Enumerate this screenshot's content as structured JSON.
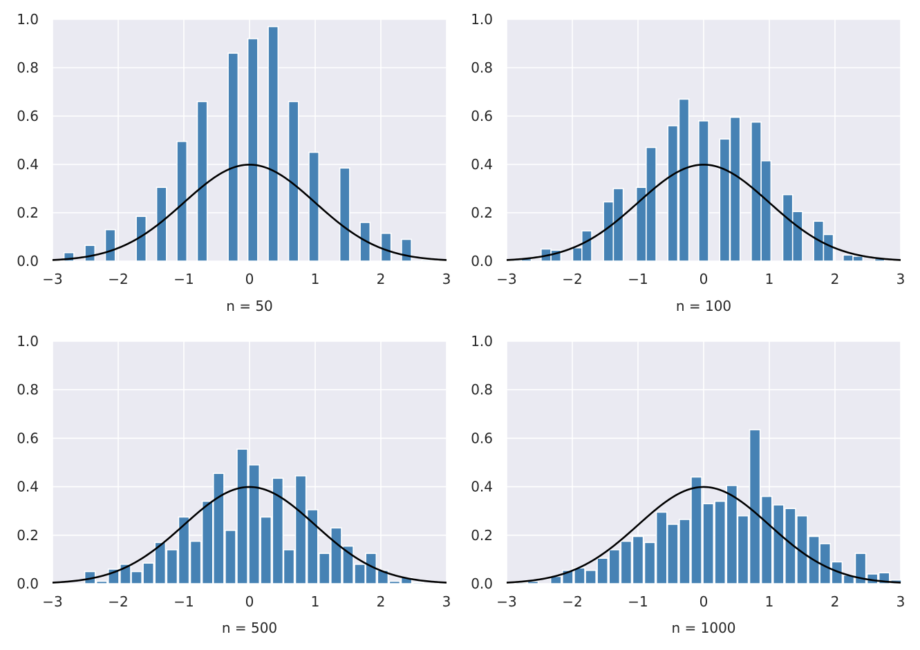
{
  "figure": {
    "background": "#ffffff"
  },
  "style": {
    "panel_bg": "#eaeaf2",
    "grid_color": "#ffffff",
    "bar_color": "#4682b4",
    "bar_edge": "#ffffff",
    "curve_color": "#000000"
  },
  "chart_data": [
    {
      "type": "bar",
      "xlabel": "n = 50",
      "xlim": [
        -3,
        3
      ],
      "ylim": [
        0,
        1
      ],
      "xticks": [
        -3,
        -2,
        -1,
        0,
        1,
        2,
        3
      ],
      "xtick_labels": [
        "−3",
        "−2",
        "−1",
        "0",
        "1",
        "2",
        "3"
      ],
      "yticks": [
        0,
        0.2,
        0.4,
        0.6,
        0.8,
        1.0
      ],
      "ytick_labels": [
        "0.0",
        "0.2",
        "0.4",
        "0.6",
        "0.8",
        "1.0"
      ],
      "grid": true,
      "bin_width": 0.15,
      "bars": [
        {
          "x": -2.75,
          "y": 0.035
        },
        {
          "x": -2.43,
          "y": 0.065
        },
        {
          "x": -2.12,
          "y": 0.13
        },
        {
          "x": -1.65,
          "y": 0.185
        },
        {
          "x": -1.34,
          "y": 0.305
        },
        {
          "x": -1.03,
          "y": 0.495
        },
        {
          "x": -0.72,
          "y": 0.66
        },
        {
          "x": -0.25,
          "y": 0.86
        },
        {
          "x": 0.05,
          "y": 0.92
        },
        {
          "x": 0.36,
          "y": 0.97
        },
        {
          "x": 0.67,
          "y": 0.66
        },
        {
          "x": 0.98,
          "y": 0.45
        },
        {
          "x": 1.45,
          "y": 0.385
        },
        {
          "x": 1.76,
          "y": 0.16
        },
        {
          "x": 2.08,
          "y": 0.115
        },
        {
          "x": 2.39,
          "y": 0.09
        },
        {
          "x": 2.7,
          "y": 0.005
        }
      ],
      "curve": "standard normal pdf"
    },
    {
      "type": "bar",
      "xlabel": "n = 100",
      "xlim": [
        -3,
        3
      ],
      "ylim": [
        0,
        1
      ],
      "xticks": [
        -3,
        -2,
        -1,
        0,
        1,
        2,
        3
      ],
      "xtick_labels": [
        "−3",
        "−2",
        "−1",
        "0",
        "1",
        "2",
        "3"
      ],
      "yticks": [
        0,
        0.2,
        0.4,
        0.6,
        0.8,
        1.0
      ],
      "ytick_labels": [
        "0.0",
        "0.2",
        "0.4",
        "0.6",
        "0.8",
        "1.0"
      ],
      "grid": true,
      "bin_width": 0.15,
      "bars": [
        {
          "x": -2.85,
          "y": 0.005
        },
        {
          "x": -2.7,
          "y": 0.01
        },
        {
          "x": -2.4,
          "y": 0.05
        },
        {
          "x": -2.25,
          "y": 0.045
        },
        {
          "x": -1.92,
          "y": 0.055
        },
        {
          "x": -1.78,
          "y": 0.125
        },
        {
          "x": -1.45,
          "y": 0.245
        },
        {
          "x": -1.3,
          "y": 0.3
        },
        {
          "x": -0.95,
          "y": 0.305
        },
        {
          "x": -0.8,
          "y": 0.47
        },
        {
          "x": -0.47,
          "y": 0.56
        },
        {
          "x": -0.3,
          "y": 0.67
        },
        {
          "x": 0.0,
          "y": 0.58
        },
        {
          "x": 0.32,
          "y": 0.505
        },
        {
          "x": 0.48,
          "y": 0.595
        },
        {
          "x": 0.8,
          "y": 0.575
        },
        {
          "x": 0.95,
          "y": 0.415
        },
        {
          "x": 1.28,
          "y": 0.275
        },
        {
          "x": 1.43,
          "y": 0.205
        },
        {
          "x": 1.75,
          "y": 0.165
        },
        {
          "x": 1.9,
          "y": 0.11
        },
        {
          "x": 2.2,
          "y": 0.025
        },
        {
          "x": 2.35,
          "y": 0.02
        },
        {
          "x": 2.68,
          "y": 0.01
        }
      ],
      "curve": "standard normal pdf"
    },
    {
      "type": "bar",
      "xlabel": "n = 500",
      "xlim": [
        -3,
        3
      ],
      "ylim": [
        0,
        1
      ],
      "xticks": [
        -3,
        -2,
        -1,
        0,
        1,
        2,
        3
      ],
      "xtick_labels": [
        "−3",
        "−2",
        "−1",
        "0",
        "1",
        "2",
        "3"
      ],
      "yticks": [
        0,
        0.2,
        0.4,
        0.6,
        0.8,
        1.0
      ],
      "ytick_labels": [
        "0.0",
        "0.2",
        "0.4",
        "0.6",
        "0.8",
        "1.0"
      ],
      "grid": true,
      "bin_width": 0.16,
      "bars": [
        {
          "x": -2.43,
          "y": 0.05
        },
        {
          "x": -2.25,
          "y": 0.01
        },
        {
          "x": -2.07,
          "y": 0.06
        },
        {
          "x": -1.89,
          "y": 0.08
        },
        {
          "x": -1.72,
          "y": 0.05
        },
        {
          "x": -1.54,
          "y": 0.085
        },
        {
          "x": -1.36,
          "y": 0.17
        },
        {
          "x": -1.18,
          "y": 0.14
        },
        {
          "x": -1.0,
          "y": 0.275
        },
        {
          "x": -0.82,
          "y": 0.175
        },
        {
          "x": -0.64,
          "y": 0.34
        },
        {
          "x": -0.47,
          "y": 0.455
        },
        {
          "x": -0.29,
          "y": 0.22
        },
        {
          "x": -0.11,
          "y": 0.555
        },
        {
          "x": 0.07,
          "y": 0.49
        },
        {
          "x": 0.25,
          "y": 0.275
        },
        {
          "x": 0.43,
          "y": 0.435
        },
        {
          "x": 0.6,
          "y": 0.14
        },
        {
          "x": 0.78,
          "y": 0.445
        },
        {
          "x": 0.96,
          "y": 0.305
        },
        {
          "x": 1.14,
          "y": 0.125
        },
        {
          "x": 1.32,
          "y": 0.23
        },
        {
          "x": 1.5,
          "y": 0.155
        },
        {
          "x": 1.68,
          "y": 0.08
        },
        {
          "x": 1.85,
          "y": 0.125
        },
        {
          "x": 2.03,
          "y": 0.055
        },
        {
          "x": 2.21,
          "y": 0.01
        },
        {
          "x": 2.39,
          "y": 0.025
        },
        {
          "x": 2.57,
          "y": 0.005
        }
      ],
      "curve": "standard normal pdf"
    },
    {
      "type": "bar",
      "xlabel": "n = 1000",
      "xlim": [
        -3,
        3
      ],
      "ylim": [
        0,
        1
      ],
      "xticks": [
        -3,
        -2,
        -1,
        0,
        1,
        2,
        3
      ],
      "xtick_labels": [
        "−3",
        "−2",
        "−1",
        "0",
        "1",
        "2",
        "3"
      ],
      "yticks": [
        0,
        0.2,
        0.4,
        0.6,
        0.8,
        1.0
      ],
      "ytick_labels": [
        "0.0",
        "0.2",
        "0.4",
        "0.6",
        "0.8",
        "1.0"
      ],
      "grid": true,
      "bin_width": 0.16,
      "bars": [
        {
          "x": -2.78,
          "y": 0.005
        },
        {
          "x": -2.6,
          "y": 0.01
        },
        {
          "x": -2.25,
          "y": 0.03
        },
        {
          "x": -2.07,
          "y": 0.055
        },
        {
          "x": -1.89,
          "y": 0.065
        },
        {
          "x": -1.72,
          "y": 0.055
        },
        {
          "x": -1.54,
          "y": 0.105
        },
        {
          "x": -1.36,
          "y": 0.14
        },
        {
          "x": -1.18,
          "y": 0.175
        },
        {
          "x": -1.0,
          "y": 0.195
        },
        {
          "x": -0.82,
          "y": 0.17
        },
        {
          "x": -0.64,
          "y": 0.295
        },
        {
          "x": -0.47,
          "y": 0.245
        },
        {
          "x": -0.29,
          "y": 0.265
        },
        {
          "x": -0.11,
          "y": 0.44
        },
        {
          "x": 0.07,
          "y": 0.33
        },
        {
          "x": 0.25,
          "y": 0.34
        },
        {
          "x": 0.43,
          "y": 0.405
        },
        {
          "x": 0.6,
          "y": 0.28
        },
        {
          "x": 0.78,
          "y": 0.635
        },
        {
          "x": 0.96,
          "y": 0.36
        },
        {
          "x": 1.14,
          "y": 0.325
        },
        {
          "x": 1.32,
          "y": 0.31
        },
        {
          "x": 1.5,
          "y": 0.28
        },
        {
          "x": 1.68,
          "y": 0.195
        },
        {
          "x": 1.85,
          "y": 0.165
        },
        {
          "x": 2.03,
          "y": 0.09
        },
        {
          "x": 2.21,
          "y": 0.035
        },
        {
          "x": 2.39,
          "y": 0.125
        },
        {
          "x": 2.57,
          "y": 0.04
        },
        {
          "x": 2.75,
          "y": 0.045
        },
        {
          "x": 2.93,
          "y": 0.015
        }
      ],
      "curve": "standard normal pdf"
    }
  ]
}
